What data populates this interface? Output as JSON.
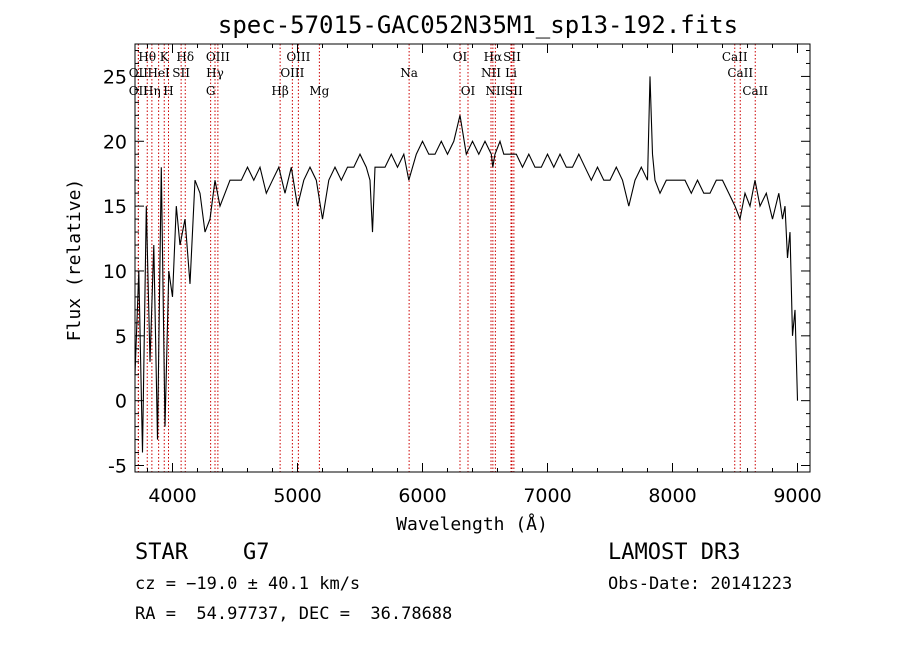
{
  "chart_data": {
    "type": "line",
    "title": "spec-57015-GAC052N35M1_sp13-192.fits",
    "xlabel": "Wavelength (Å)",
    "ylabel": "Flux (relative)",
    "xlim": [
      3700,
      9100
    ],
    "ylim": [
      -5.5,
      27.5
    ],
    "xticks": [
      4000,
      5000,
      6000,
      7000,
      8000,
      9000
    ],
    "yticks": [
      -5,
      0,
      5,
      10,
      15,
      20,
      25
    ],
    "grid": false,
    "series": [
      {
        "name": "flux",
        "x": [
          3700,
          3730,
          3760,
          3790,
          3820,
          3850,
          3880,
          3910,
          3940,
          3970,
          4000,
          4030,
          4060,
          4100,
          4140,
          4180,
          4220,
          4260,
          4300,
          4340,
          4380,
          4420,
          4460,
          4500,
          4550,
          4600,
          4650,
          4700,
          4750,
          4800,
          4850,
          4900,
          4950,
          5000,
          5050,
          5100,
          5150,
          5200,
          5250,
          5300,
          5350,
          5400,
          5450,
          5500,
          5550,
          5580,
          5600,
          5620,
          5650,
          5700,
          5750,
          5800,
          5850,
          5890,
          5950,
          6000,
          6050,
          6100,
          6150,
          6200,
          6250,
          6300,
          6350,
          6400,
          6450,
          6500,
          6550,
          6562,
          6580,
          6620,
          6650,
          6700,
          6750,
          6800,
          6850,
          6900,
          6950,
          7000,
          7050,
          7100,
          7150,
          7200,
          7250,
          7300,
          7350,
          7400,
          7450,
          7500,
          7550,
          7600,
          7650,
          7700,
          7750,
          7800,
          7820,
          7840,
          7860,
          7900,
          7950,
          8000,
          8050,
          8100,
          8150,
          8200,
          8250,
          8300,
          8350,
          8400,
          8450,
          8500,
          8540,
          8580,
          8620,
          8660,
          8700,
          8750,
          8800,
          8850,
          8880,
          8900,
          8920,
          8940,
          8960,
          8980,
          9000
        ],
        "y": [
          2,
          10,
          -4,
          15,
          3,
          12,
          -3,
          18,
          -2,
          10,
          8,
          15,
          12,
          14,
          9,
          17,
          16,
          13,
          14,
          17,
          15,
          16,
          17,
          17,
          17,
          18,
          17,
          18,
          16,
          17,
          18,
          16,
          18,
          15,
          17,
          18,
          17,
          14,
          17,
          18,
          17,
          18,
          18,
          19,
          18,
          17,
          13,
          18,
          18,
          18,
          19,
          18,
          19,
          17,
          19,
          20,
          19,
          19,
          20,
          19,
          20,
          22,
          19,
          20,
          19,
          20,
          19,
          18,
          19,
          20,
          19,
          19,
          19,
          18,
          19,
          18,
          18,
          19,
          18,
          19,
          18,
          18,
          19,
          18,
          17,
          18,
          17,
          17,
          18,
          17,
          15,
          17,
          18,
          17,
          25,
          19,
          17,
          16,
          17,
          17,
          17,
          17,
          16,
          17,
          16,
          16,
          17,
          17,
          16,
          15,
          14,
          16,
          15,
          17,
          15,
          16,
          14,
          16,
          14,
          15,
          11,
          13,
          5,
          7,
          0
        ]
      }
    ],
    "lines": [
      {
        "label": "Hθ",
        "x": 3798,
        "row": 1
      },
      {
        "label": "K",
        "x": 3934,
        "row": 1
      },
      {
        "label": "Hδ",
        "x": 4102,
        "row": 1
      },
      {
        "label": "OIII",
        "x": 4363,
        "row": 1
      },
      {
        "label": "OIII",
        "x": 5007,
        "row": 1
      },
      {
        "label": "OI",
        "x": 6300,
        "row": 1
      },
      {
        "label": "Hα",
        "x": 6563,
        "row": 1
      },
      {
        "label": "SII",
        "x": 6716,
        "row": 1
      },
      {
        "label": "CaII",
        "x": 8498,
        "row": 1
      },
      {
        "label": "OII",
        "x": 3727,
        "row": 2
      },
      {
        "label": "HeI",
        "x": 3889,
        "row": 2
      },
      {
        "label": "SII",
        "x": 4069,
        "row": 2
      },
      {
        "label": "Hγ",
        "x": 4340,
        "row": 2
      },
      {
        "label": "OIII",
        "x": 4959,
        "row": 2
      },
      {
        "label": "Na",
        "x": 5893,
        "row": 2
      },
      {
        "label": "NII",
        "x": 6548,
        "row": 2
      },
      {
        "label": "Li",
        "x": 6708,
        "row": 2
      },
      {
        "label": "CaII",
        "x": 8542,
        "row": 2
      },
      {
        "label": "OII",
        "x": 3727,
        "row": 3
      },
      {
        "label": "Hη",
        "x": 3835,
        "row": 3
      },
      {
        "label": "H",
        "x": 3968,
        "row": 3
      },
      {
        "label": "G",
        "x": 4305,
        "row": 3
      },
      {
        "label": "Hβ",
        "x": 4861,
        "row": 3
      },
      {
        "label": "Mg",
        "x": 5175,
        "row": 3
      },
      {
        "label": "OI",
        "x": 6364,
        "row": 3
      },
      {
        "label": "NII",
        "x": 6583,
        "row": 3
      },
      {
        "label": "SII",
        "x": 6731,
        "row": 3
      },
      {
        "label": "CaII",
        "x": 8662,
        "row": 3
      }
    ]
  },
  "info": {
    "object_class": "STAR",
    "subclass": "G7",
    "survey": "LAMOST DR3",
    "redshift": "cz = −19.0 ± 40.1 km/s",
    "obs_date": "Obs-Date: 20141223",
    "coords": "RA =  54.97737, DEC =  36.78688"
  },
  "colors": {
    "axis": "#000000",
    "spectrum": "#000000",
    "line_marker": "#cc0000"
  }
}
